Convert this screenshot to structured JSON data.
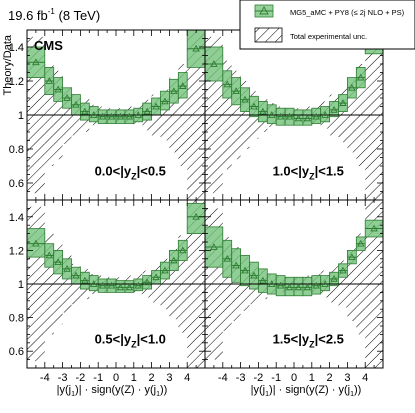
{
  "header": {
    "lumi_value": "19.6 fb",
    "lumi_exp": "-1",
    "energy": " (8 TeV)",
    "experiment": "CMS",
    "ylabel": "Theory/Data"
  },
  "legend": {
    "placement": "top-right",
    "entries": [
      {
        "label": "MG5_aMC + PY8 (≤ 2j NLO + PS)",
        "kind": "theory"
      },
      {
        "label": "Total experimental unc.",
        "kind": "experimental"
      }
    ]
  },
  "colors": {
    "theory_fill": "#73c27a",
    "theory_edge": "#2e7d32",
    "marker": "#2e7d32",
    "exp_hatch": "#000000",
    "reference_line": "#000000"
  },
  "chart_data": [
    {
      "type": "area",
      "panel": "top-left",
      "label_prefix": "0.0<|y",
      "label_sub": "Z",
      "label_suffix": "|<0.5",
      "xlim": [
        -5,
        5
      ],
      "ylim": [
        0.5,
        1.5
      ],
      "edges": [
        -5,
        -4,
        -3.5,
        -3,
        -2.5,
        -2,
        -1.5,
        -1,
        -0.5,
        0,
        0.5,
        1,
        1.5,
        2,
        2.5,
        3,
        3.5,
        4,
        5
      ],
      "ratio": [
        1.31,
        1.2,
        1.15,
        1.1,
        1.06,
        1.02,
        1.0,
        0.99,
        0.99,
        0.99,
        0.99,
        1.0,
        1.02,
        1.05,
        1.08,
        1.14,
        1.17,
        1.39
      ],
      "th_low": [
        1.22,
        1.12,
        1.08,
        1.04,
        1.0,
        0.97,
        0.96,
        0.95,
        0.95,
        0.95,
        0.95,
        0.96,
        0.97,
        1.0,
        1.03,
        1.07,
        1.1,
        1.28
      ],
      "th_high": [
        1.4,
        1.28,
        1.22,
        1.16,
        1.12,
        1.07,
        1.05,
        1.03,
        1.03,
        1.03,
        1.03,
        1.04,
        1.07,
        1.1,
        1.14,
        1.21,
        1.25,
        1.5
      ],
      "exp_unc": [
        0.46,
        0.3,
        0.26,
        0.17,
        0.12,
        0.1,
        0.06,
        0.05,
        0.04,
        0.04,
        0.05,
        0.06,
        0.09,
        0.12,
        0.15,
        0.22,
        0.3,
        0.55
      ]
    },
    {
      "type": "area",
      "panel": "top-right",
      "label_prefix": "1.0<|y",
      "label_sub": "Z",
      "label_suffix": "|<1.5",
      "xlim": [
        -5,
        5
      ],
      "ylim": [
        0.5,
        1.5
      ],
      "edges": [
        -5,
        -4,
        -3.5,
        -3,
        -2.5,
        -2,
        -1.5,
        -1,
        -0.5,
        0,
        0.5,
        1,
        1.5,
        2,
        2.5,
        3,
        3.5,
        4,
        5
      ],
      "ratio": [
        1.3,
        1.18,
        1.14,
        1.09,
        1.05,
        1.02,
        1.0,
        0.99,
        0.99,
        0.98,
        0.98,
        0.99,
        1.0,
        1.03,
        1.07,
        1.16,
        1.22,
        1.44
      ],
      "th_low": [
        1.2,
        1.1,
        1.06,
        1.02,
        0.99,
        0.96,
        0.95,
        0.94,
        0.94,
        0.94,
        0.94,
        0.95,
        0.96,
        0.99,
        1.02,
        1.1,
        1.16,
        1.36
      ],
      "th_high": [
        1.4,
        1.26,
        1.22,
        1.16,
        1.11,
        1.08,
        1.06,
        1.04,
        1.04,
        1.03,
        1.03,
        1.04,
        1.05,
        1.08,
        1.12,
        1.22,
        1.28,
        1.52
      ],
      "exp_unc": [
        0.46,
        0.32,
        0.26,
        0.2,
        0.14,
        0.1,
        0.07,
        0.05,
        0.04,
        0.04,
        0.05,
        0.06,
        0.08,
        0.12,
        0.16,
        0.22,
        0.3,
        0.52
      ]
    },
    {
      "type": "area",
      "panel": "bottom-left",
      "label_prefix": "0.5<|y",
      "label_sub": "Z",
      "label_suffix": "|<1.0",
      "xlim": [
        -5,
        5
      ],
      "ylim": [
        0.5,
        1.5
      ],
      "edges": [
        -5,
        -4,
        -3.5,
        -3,
        -2.5,
        -2,
        -1.5,
        -1,
        -0.5,
        0,
        0.5,
        1,
        1.5,
        2,
        2.5,
        3,
        3.5,
        4,
        5
      ],
      "ratio": [
        1.24,
        1.17,
        1.13,
        1.09,
        1.05,
        1.02,
        1.0,
        0.99,
        0.99,
        0.98,
        0.98,
        0.99,
        1.01,
        1.04,
        1.08,
        1.14,
        1.2,
        1.4
      ],
      "th_low": [
        1.16,
        1.1,
        1.06,
        1.03,
        1.0,
        0.97,
        0.96,
        0.95,
        0.95,
        0.95,
        0.95,
        0.96,
        0.97,
        1.0,
        1.03,
        1.08,
        1.14,
        1.3
      ],
      "th_high": [
        1.33,
        1.24,
        1.2,
        1.15,
        1.1,
        1.07,
        1.05,
        1.03,
        1.03,
        1.02,
        1.02,
        1.03,
        1.05,
        1.08,
        1.13,
        1.2,
        1.26,
        1.48
      ],
      "exp_unc": [
        0.46,
        0.3,
        0.24,
        0.17,
        0.12,
        0.09,
        0.06,
        0.05,
        0.04,
        0.04,
        0.05,
        0.06,
        0.08,
        0.11,
        0.15,
        0.21,
        0.29,
        0.53
      ]
    },
    {
      "type": "area",
      "panel": "bottom-right",
      "label_prefix": "1.5<|y",
      "label_sub": "Z",
      "label_suffix": "|<2.5",
      "xlim": [
        -5,
        5
      ],
      "ylim": [
        0.5,
        1.5
      ],
      "edges": [
        -5,
        -4,
        -3.5,
        -3,
        -2.5,
        -2,
        -1.5,
        -1,
        -0.5,
        0,
        0.5,
        1,
        1.5,
        2,
        2.5,
        3,
        3.5,
        4,
        5
      ],
      "ratio": [
        1.22,
        1.15,
        1.11,
        1.08,
        1.05,
        1.02,
        1.0,
        0.99,
        0.98,
        0.98,
        0.98,
        0.99,
        1.0,
        1.03,
        1.08,
        1.16,
        1.24,
        1.33
      ],
      "th_low": [
        1.1,
        1.04,
        1.01,
        0.99,
        0.97,
        0.95,
        0.94,
        0.93,
        0.93,
        0.93,
        0.93,
        0.94,
        0.96,
        0.99,
        1.04,
        1.12,
        1.2,
        1.28
      ],
      "th_high": [
        1.34,
        1.26,
        1.21,
        1.17,
        1.13,
        1.09,
        1.06,
        1.05,
        1.04,
        1.04,
        1.04,
        1.05,
        1.05,
        1.07,
        1.12,
        1.2,
        1.28,
        1.38
      ],
      "exp_unc": [
        0.45,
        0.28,
        0.22,
        0.16,
        0.12,
        0.09,
        0.06,
        0.05,
        0.04,
        0.04,
        0.05,
        0.06,
        0.08,
        0.11,
        0.14,
        0.22,
        0.3,
        0.5
      ]
    }
  ],
  "axes": {
    "y_ticks": [
      "0.6",
      "0.8",
      "1",
      "1.2",
      "1.4"
    ],
    "y_tick_values": [
      0.6,
      0.8,
      1.0,
      1.2,
      1.4
    ],
    "x_ticks": [
      "-4",
      "-3",
      "-2",
      "-1",
      "0",
      "1",
      "2",
      "3",
      "4"
    ],
    "x_tick_values": [
      -4,
      -3,
      -2,
      -1,
      0,
      1,
      2,
      3,
      4
    ],
    "xlabel_left": {
      "p1": "|y(j",
      "s1": "1",
      "p2": ")| · sign(y(Z) · y(j",
      "s2": "1",
      "p3": "))"
    },
    "xlabel_right": {
      "p1": "|y(j",
      "s1": "1",
      "p2": ")| · sign(y(Z) · y(j",
      "s2": "1",
      "p3": "))"
    }
  }
}
